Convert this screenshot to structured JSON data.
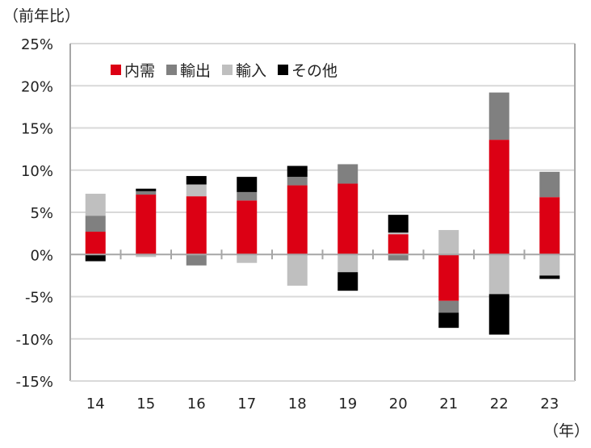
{
  "chart_data": {
    "type": "bar",
    "stacked": true,
    "ylabel": "（前年比）",
    "xlabel": "（年）",
    "ylim": [
      -15,
      25
    ],
    "yticks": [
      -15,
      -10,
      -5,
      0,
      5,
      10,
      15,
      20,
      25
    ],
    "ytick_labels": [
      "-15%",
      "-10%",
      "-5%",
      "0%",
      "5%",
      "10%",
      "15%",
      "20%",
      "25%"
    ],
    "categories": [
      "14",
      "15",
      "16",
      "17",
      "18",
      "19",
      "20",
      "21",
      "22",
      "23"
    ],
    "legend_position": "top-left",
    "grid": true,
    "series": [
      {
        "name": "内需",
        "color": "#dc0014",
        "values": [
          2.7,
          7.1,
          6.9,
          6.4,
          8.2,
          8.4,
          2.4,
          -5.5,
          13.6,
          6.8
        ]
      },
      {
        "name": "輸出",
        "color": "#808080",
        "values": [
          1.9,
          0.4,
          -1.3,
          1.0,
          1.0,
          2.3,
          -0.7,
          -1.4,
          5.6,
          3.0
        ]
      },
      {
        "name": "輸入",
        "color": "#bfbfbf",
        "values": [
          2.6,
          -0.3,
          1.4,
          -1.0,
          -3.7,
          -2.1,
          0.2,
          2.9,
          -4.7,
          -2.5
        ]
      },
      {
        "name": "その他",
        "color": "#000000",
        "values": [
          -0.8,
          0.3,
          1.0,
          1.8,
          1.3,
          -2.2,
          2.1,
          -1.8,
          -4.8,
          -0.4
        ]
      }
    ]
  }
}
